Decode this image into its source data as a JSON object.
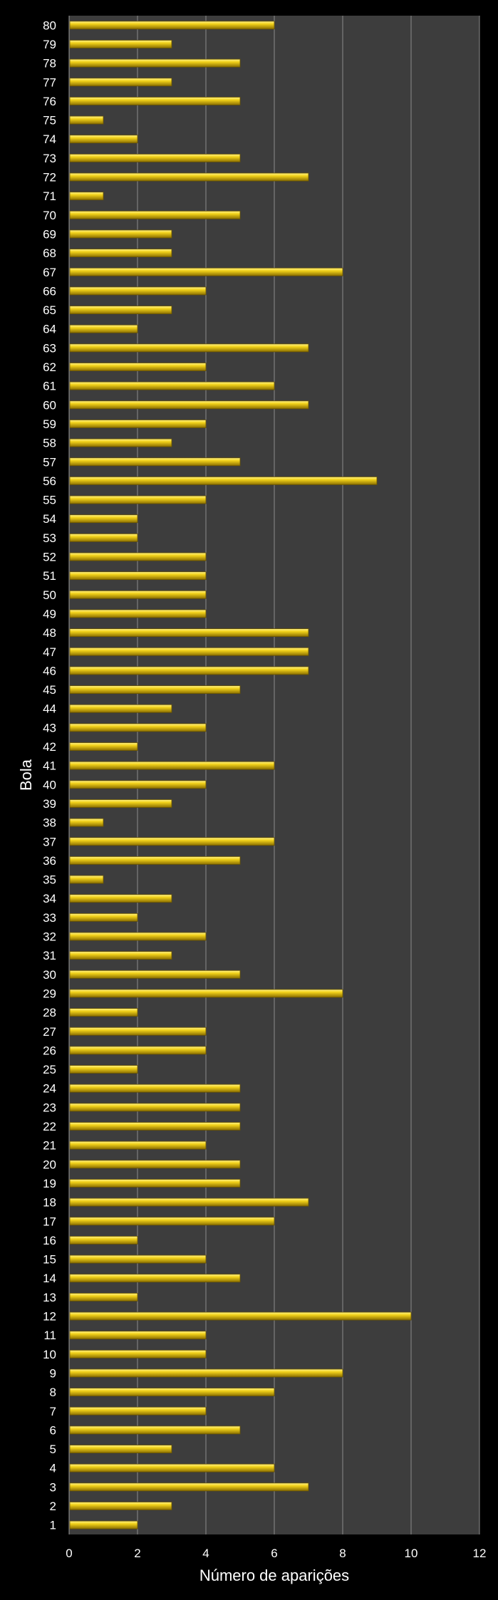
{
  "chart_data": {
    "type": "bar",
    "orientation": "horizontal",
    "title": "",
    "xlabel": "Número de aparições",
    "ylabel": "Bola",
    "xlim": [
      0,
      12
    ],
    "xticks": [
      0,
      2,
      4,
      6,
      8,
      10,
      12
    ],
    "grid": true,
    "categories": [
      "1",
      "2",
      "3",
      "4",
      "5",
      "6",
      "7",
      "8",
      "9",
      "10",
      "11",
      "12",
      "13",
      "14",
      "15",
      "16",
      "17",
      "18",
      "19",
      "20",
      "21",
      "22",
      "23",
      "24",
      "25",
      "26",
      "27",
      "28",
      "29",
      "30",
      "31",
      "32",
      "33",
      "34",
      "35",
      "36",
      "37",
      "38",
      "39",
      "40",
      "41",
      "42",
      "43",
      "44",
      "45",
      "46",
      "47",
      "48",
      "49",
      "50",
      "51",
      "52",
      "53",
      "54",
      "55",
      "56",
      "57",
      "58",
      "59",
      "60",
      "61",
      "62",
      "63",
      "64",
      "65",
      "66",
      "67",
      "68",
      "69",
      "70",
      "71",
      "72",
      "73",
      "74",
      "75",
      "76",
      "77",
      "78",
      "79",
      "80"
    ],
    "values": [
      2,
      3,
      7,
      6,
      3,
      5,
      4,
      6,
      8,
      4,
      4,
      10,
      2,
      5,
      4,
      2,
      6,
      7,
      5,
      5,
      4,
      5,
      5,
      5,
      2,
      4,
      4,
      2,
      8,
      5,
      3,
      4,
      2,
      3,
      1,
      5,
      6,
      1,
      3,
      4,
      6,
      2,
      4,
      3,
      5,
      7,
      7,
      7,
      4,
      4,
      4,
      4,
      2,
      2,
      4,
      9,
      5,
      3,
      4,
      7,
      6,
      4,
      7,
      2,
      3,
      4,
      8,
      3,
      3,
      5,
      1,
      7,
      5,
      2,
      1,
      5,
      3,
      5,
      3,
      6
    ],
    "colors": {
      "background": "#000000",
      "plot_area": "#3d3d3d",
      "gridline": "#8a8a8a",
      "bar": "#f2d21a",
      "bar_dark": "#8a6e00",
      "text": "#ffffff"
    }
  }
}
